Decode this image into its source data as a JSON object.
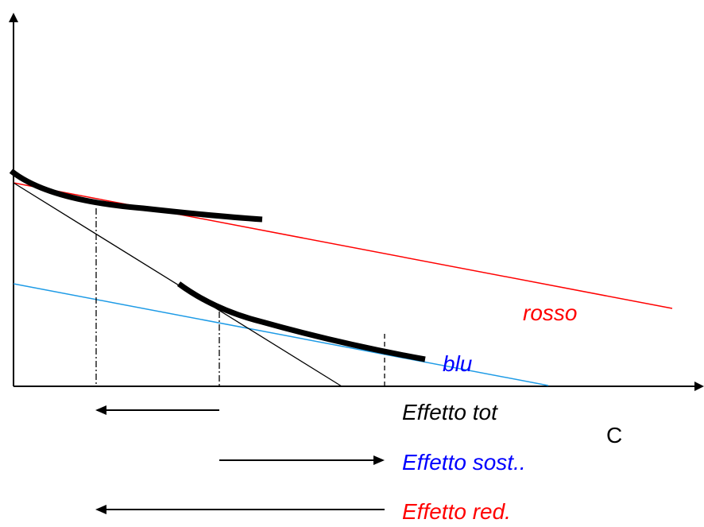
{
  "diagram": {
    "labels": {
      "red_line": "rosso",
      "blue_line": "blu",
      "x_axis": "C"
    },
    "effects": [
      {
        "label": "Effetto tot",
        "direction": "left",
        "color": "#000000"
      },
      {
        "label": "Effetto sost..",
        "direction": "right",
        "color": "#0000FF"
      },
      {
        "label": "Effetto red.",
        "direction": "left",
        "color": "#FF0000"
      }
    ],
    "colors": {
      "red_budget_line": "#FF0000",
      "blue_budget_line": "#1E9BE6",
      "label_blue": "#0000FF",
      "axes": "#000000",
      "curves": "#000000"
    }
  }
}
